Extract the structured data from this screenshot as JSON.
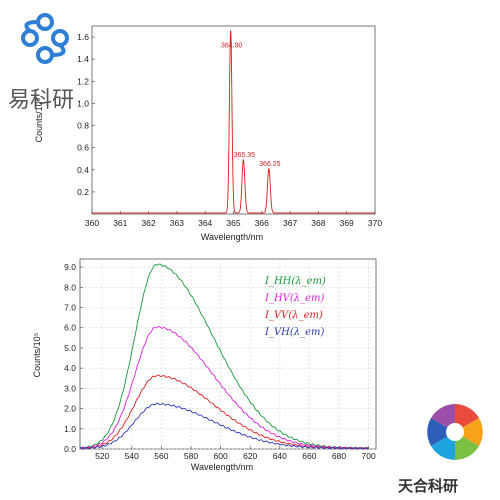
{
  "watermarks": {
    "top_left_text": "易科研",
    "bottom_right_text": "天合科研"
  },
  "colors": {
    "top_line": "#dd1c1c",
    "hh": "#1a9a3a",
    "hv": "#e020e0",
    "vv": "#e02020",
    "vh": "#2a3abf",
    "logo_blue": "#2f7fd6"
  },
  "chart_data": [
    {
      "type": "line",
      "xlabel": "Wavelength/nm",
      "ylabel": "Counts/10⁵",
      "xlim": [
        360,
        370
      ],
      "ylim": [
        0,
        1.7
      ],
      "xticks": [
        "360",
        "361",
        "362",
        "363",
        "364",
        "365",
        "366",
        "367",
        "368",
        "369",
        "370"
      ],
      "yticks": [
        "0.2",
        "0.4",
        "0.6",
        "0.8",
        "1.0",
        "1.2",
        "1.4",
        "1.6"
      ],
      "peaks": [
        {
          "x": 364.9,
          "y": 1.65,
          "label": "364.90"
        },
        {
          "x": 365.35,
          "y": 0.48,
          "label": "365.35"
        },
        {
          "x": 366.25,
          "y": 0.4,
          "label": "366.25"
        }
      ],
      "baseline": 0.01
    },
    {
      "type": "line",
      "xlabel": "Wavelength/nm",
      "ylabel": "Counts/10⁵",
      "xlim": [
        505,
        705
      ],
      "ylim": [
        0,
        9.4
      ],
      "xticks": [
        "520",
        "540",
        "560",
        "580",
        "600",
        "620",
        "640",
        "660",
        "680",
        "700"
      ],
      "yticks": [
        "0.0",
        "1.0",
        "2.0",
        "3.0",
        "4.0",
        "5.0",
        "6.0",
        "7.0",
        "8.0",
        "9.0"
      ],
      "series": [
        {
          "name": "I_HH(λ_em)",
          "sub": "HH",
          "peak_x": 557,
          "peak_y": 9.1
        },
        {
          "name": "I_HV(λ_em)",
          "sub": "HV",
          "peak_x": 557,
          "peak_y": 6.0
        },
        {
          "name": "I_VV(λ_em)",
          "sub": "VV",
          "peak_x": 557,
          "peak_y": 3.6
        },
        {
          "name": "I_VH(λ_em)",
          "sub": "VH",
          "peak_x": 557,
          "peak_y": 2.2
        }
      ]
    }
  ]
}
